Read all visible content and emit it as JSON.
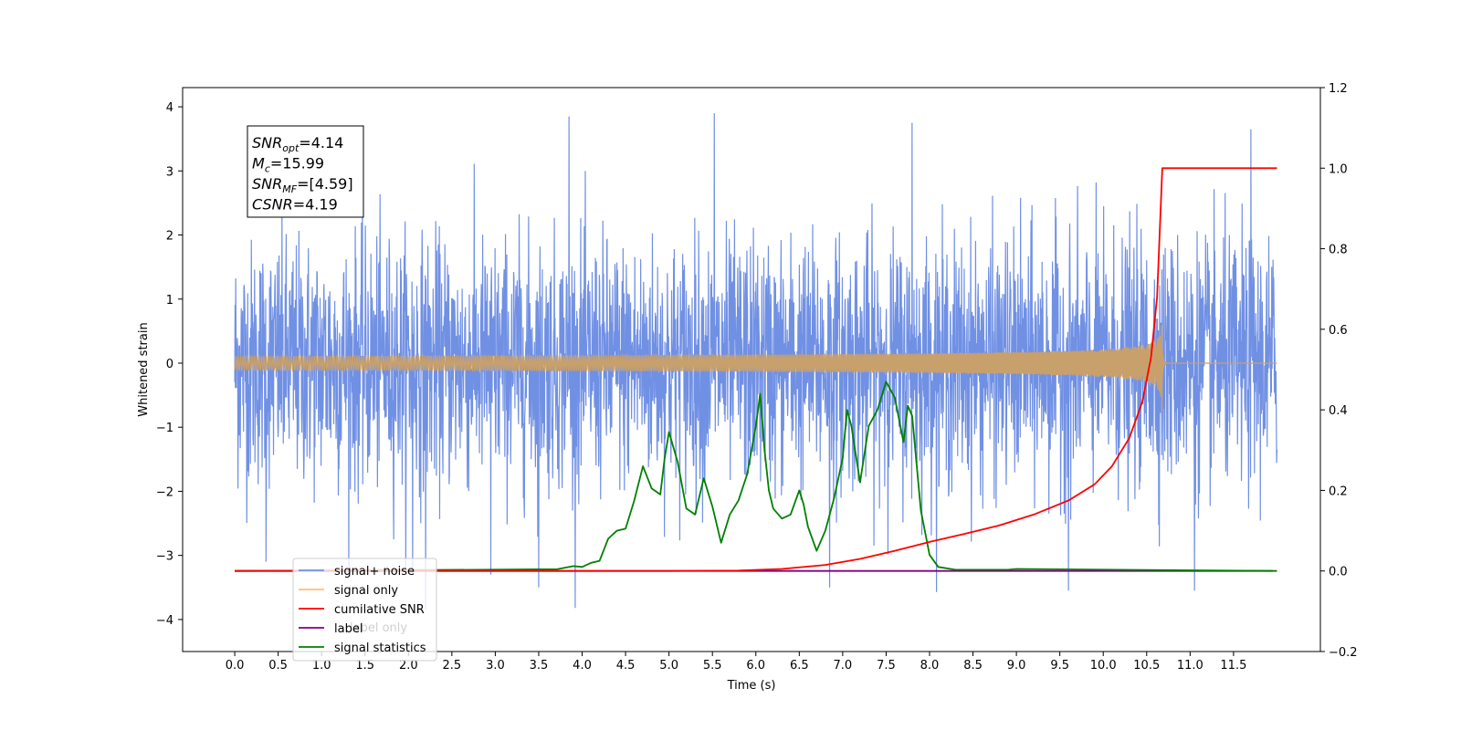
{
  "chart_data": {
    "type": "line",
    "title": "",
    "xlabel": "Time (s)",
    "ylabel": "Whitened strain",
    "xlim": [
      -0.6,
      12.5
    ],
    "ylim": [
      -4.5,
      4.3
    ],
    "y2lim": [
      -0.2,
      1.2
    ],
    "x_ticks": [
      0.0,
      0.5,
      1.0,
      1.5,
      2.0,
      2.5,
      3.0,
      3.5,
      4.0,
      4.5,
      5.0,
      5.5,
      6.0,
      6.5,
      7.0,
      7.5,
      8.0,
      8.5,
      9.0,
      9.5,
      10.0,
      10.5,
      11.0,
      11.5
    ],
    "x_tick_labels": [
      "0.0",
      "0.5",
      "1.0",
      "1.5",
      "2.0",
      "2.5",
      "3.0",
      "3.5",
      "4.0",
      "4.5",
      "5.0",
      "5.5",
      "6.0",
      "6.5",
      "7.0",
      "7.5",
      "8.0",
      "8.5",
      "9.0",
      "9.5",
      "10.0",
      "10.5",
      "11.0",
      "11.5"
    ],
    "y_ticks": [
      -4,
      -3,
      -2,
      -1,
      0,
      1,
      2,
      3,
      4
    ],
    "y_tick_labels": [
      "−4",
      "−3",
      "−2",
      "−1",
      "0",
      "1",
      "2",
      "3",
      "4"
    ],
    "y2_ticks": [
      -0.2,
      0.0,
      0.2,
      0.4,
      0.6,
      0.8,
      1.0,
      1.2
    ],
    "y2_tick_labels": [
      "−0.2",
      "0.0",
      "0.2",
      "0.4",
      "0.6",
      "0.8",
      "1.0",
      "1.2"
    ],
    "grid": false,
    "legend_position": "lower-left",
    "signal_noise": {
      "x_range": [
        0.0,
        12.0
      ],
      "typical_band": [
        -1.5,
        1.5
      ],
      "min": -3.85,
      "max": 3.9,
      "peaks": [
        {
          "x": 0.36,
          "y": -3.1
        },
        {
          "x": 2.05,
          "y": -3.3
        },
        {
          "x": 2.2,
          "y": -3.85
        },
        {
          "x": 2.95,
          "y": -3.3
        },
        {
          "x": 3.5,
          "y": -3.5
        },
        {
          "x": 3.85,
          "y": 3.85
        },
        {
          "x": 5.52,
          "y": 3.9
        },
        {
          "x": 6.85,
          "y": -3.5
        },
        {
          "x": 7.8,
          "y": 3.75
        },
        {
          "x": 9.6,
          "y": -3.55
        },
        {
          "x": 11.05,
          "y": -3.55
        },
        {
          "x": 11.7,
          "y": 3.65
        }
      ]
    },
    "signal_only": {
      "merger_time": 10.68,
      "peak_amplitude": 0.82,
      "min_amplitude": -0.82
    },
    "cumulative_snr": {
      "x": [
        0.0,
        5.0,
        5.8,
        6.3,
        6.8,
        7.2,
        7.6,
        8.0,
        8.4,
        8.8,
        9.2,
        9.6,
        9.9,
        10.1,
        10.3,
        10.45,
        10.55,
        10.62,
        10.68,
        11.0,
        12.0
      ],
      "y": [
        0.0,
        0.0,
        0.001,
        0.005,
        0.015,
        0.03,
        0.05,
        0.072,
        0.092,
        0.113,
        0.14,
        0.175,
        0.215,
        0.26,
        0.33,
        0.42,
        0.53,
        0.68,
        1.0,
        1.0,
        1.0
      ]
    },
    "label": {
      "x": [
        0.0,
        11.95
      ],
      "y": [
        0.0,
        0.0
      ]
    },
    "signal_statistics": {
      "x": [
        0.0,
        2.8,
        3.5,
        3.7,
        3.9,
        4.0,
        4.1,
        4.2,
        4.3,
        4.4,
        4.5,
        4.6,
        4.7,
        4.8,
        4.9,
        4.95,
        5.0,
        5.1,
        5.2,
        5.3,
        5.4,
        5.5,
        5.6,
        5.7,
        5.8,
        5.9,
        6.0,
        6.05,
        6.1,
        6.15,
        6.2,
        6.3,
        6.4,
        6.5,
        6.55,
        6.6,
        6.7,
        6.8,
        6.9,
        7.0,
        7.05,
        7.1,
        7.2,
        7.3,
        7.4,
        7.5,
        7.6,
        7.7,
        7.75,
        7.8,
        7.9,
        8.0,
        8.1,
        8.3,
        8.9,
        9.0,
        12.0
      ],
      "y": [
        0.0,
        0.003,
        0.004,
        0.004,
        0.012,
        0.01,
        0.02,
        0.025,
        0.08,
        0.1,
        0.105,
        0.175,
        0.26,
        0.205,
        0.19,
        0.28,
        0.345,
        0.27,
        0.155,
        0.14,
        0.23,
        0.16,
        0.07,
        0.14,
        0.175,
        0.24,
        0.36,
        0.44,
        0.3,
        0.2,
        0.155,
        0.13,
        0.14,
        0.2,
        0.165,
        0.11,
        0.05,
        0.1,
        0.18,
        0.28,
        0.4,
        0.36,
        0.22,
        0.36,
        0.4,
        0.47,
        0.43,
        0.32,
        0.41,
        0.385,
        0.15,
        0.04,
        0.01,
        0.003,
        0.003,
        0.005,
        0.0
      ]
    },
    "series": [
      {
        "name": "signal+ noise",
        "color": "#7090e4"
      },
      {
        "name": "signal only",
        "color": "#ffbf6e"
      },
      {
        "name": "cumilative SNR",
        "color": "#ff0000"
      },
      {
        "name": "label",
        "color": "#800080"
      },
      {
        "name": "signal statistics",
        "color": "#008000"
      }
    ],
    "legend_hidden_text": "label only",
    "annotation_box": [
      {
        "base": "SNR",
        "sub": "opt",
        "value": "=4.14"
      },
      {
        "base": "M",
        "sub": "c",
        "value": "=15.99"
      },
      {
        "base": "SNR",
        "sub": "MF",
        "value": "=[4.59]"
      },
      {
        "base": "CSNR",
        "sub": "",
        "value": "=4.19"
      }
    ]
  },
  "colors": {
    "signal_noise": "#7090e4",
    "signal_only": "#c8a06c",
    "cumulative_snr": "#ff0000",
    "label": "#800080",
    "signal_statistics": "#008000"
  }
}
